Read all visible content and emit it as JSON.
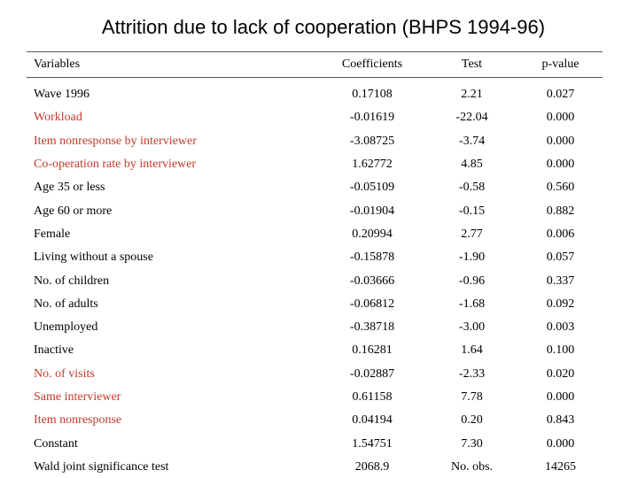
{
  "title": "Attrition due to lack of cooperation (BHPS 1994-96)",
  "colors": {
    "highlight": "#c0392b",
    "text": "#000000"
  },
  "headers": {
    "variables": "Variables",
    "coefficients": "Coefficients",
    "test": "Test",
    "pvalue": "p-value"
  },
  "rows": [
    {
      "variable": "Wave 1996",
      "coef": "0.17108",
      "test": "2.21",
      "p": "0.027",
      "highlight": false
    },
    {
      "variable": "Workload",
      "coef": "-0.01619",
      "test": "-22.04",
      "p": "0.000",
      "highlight": true
    },
    {
      "variable": "Item nonresponse by interviewer",
      "coef": "-3.08725",
      "test": "-3.74",
      "p": "0.000",
      "highlight": true
    },
    {
      "variable": "Co-operation rate by interviewer",
      "coef": "1.62772",
      "test": "4.85",
      "p": "0.000",
      "highlight": true
    },
    {
      "variable": "Age 35 or less",
      "coef": "-0.05109",
      "test": "-0.58",
      "p": "0.560",
      "highlight": false
    },
    {
      "variable": "Age 60 or more",
      "coef": "-0.01904",
      "test": "-0.15",
      "p": "0.882",
      "highlight": false
    },
    {
      "variable": "Female",
      "coef": "0.20994",
      "test": "2.77",
      "p": "0.006",
      "highlight": false
    },
    {
      "variable": "Living without a spouse",
      "coef": "-0.15878",
      "test": "-1.90",
      "p": "0.057",
      "highlight": false
    },
    {
      "variable": "No. of children",
      "coef": "-0.03666",
      "test": "-0.96",
      "p": "0.337",
      "highlight": false
    },
    {
      "variable": "No. of adults",
      "coef": "-0.06812",
      "test": "-1.68",
      "p": "0.092",
      "highlight": false
    },
    {
      "variable": "Unemployed",
      "coef": "-0.38718",
      "test": "-3.00",
      "p": "0.003",
      "highlight": false
    },
    {
      "variable": "Inactive",
      "coef": "0.16281",
      "test": "1.64",
      "p": "0.100",
      "highlight": false
    },
    {
      "variable": "No. of visits",
      "coef": "-0.02887",
      "test": "-2.33",
      "p": "0.020",
      "highlight": true
    },
    {
      "variable": "Same interviewer",
      "coef": "0.61158",
      "test": "7.78",
      "p": "0.000",
      "highlight": true
    },
    {
      "variable": "Item nonresponse",
      "coef": "0.04194",
      "test": "0.20",
      "p": "0.843",
      "highlight": true
    },
    {
      "variable": "Constant",
      "coef": "1.54751",
      "test": "7.30",
      "p": "0.000",
      "highlight": false
    },
    {
      "variable": "Wald joint significance test",
      "coef": "2068.9",
      "test": "No. obs.",
      "p": "14265",
      "highlight": false
    }
  ]
}
